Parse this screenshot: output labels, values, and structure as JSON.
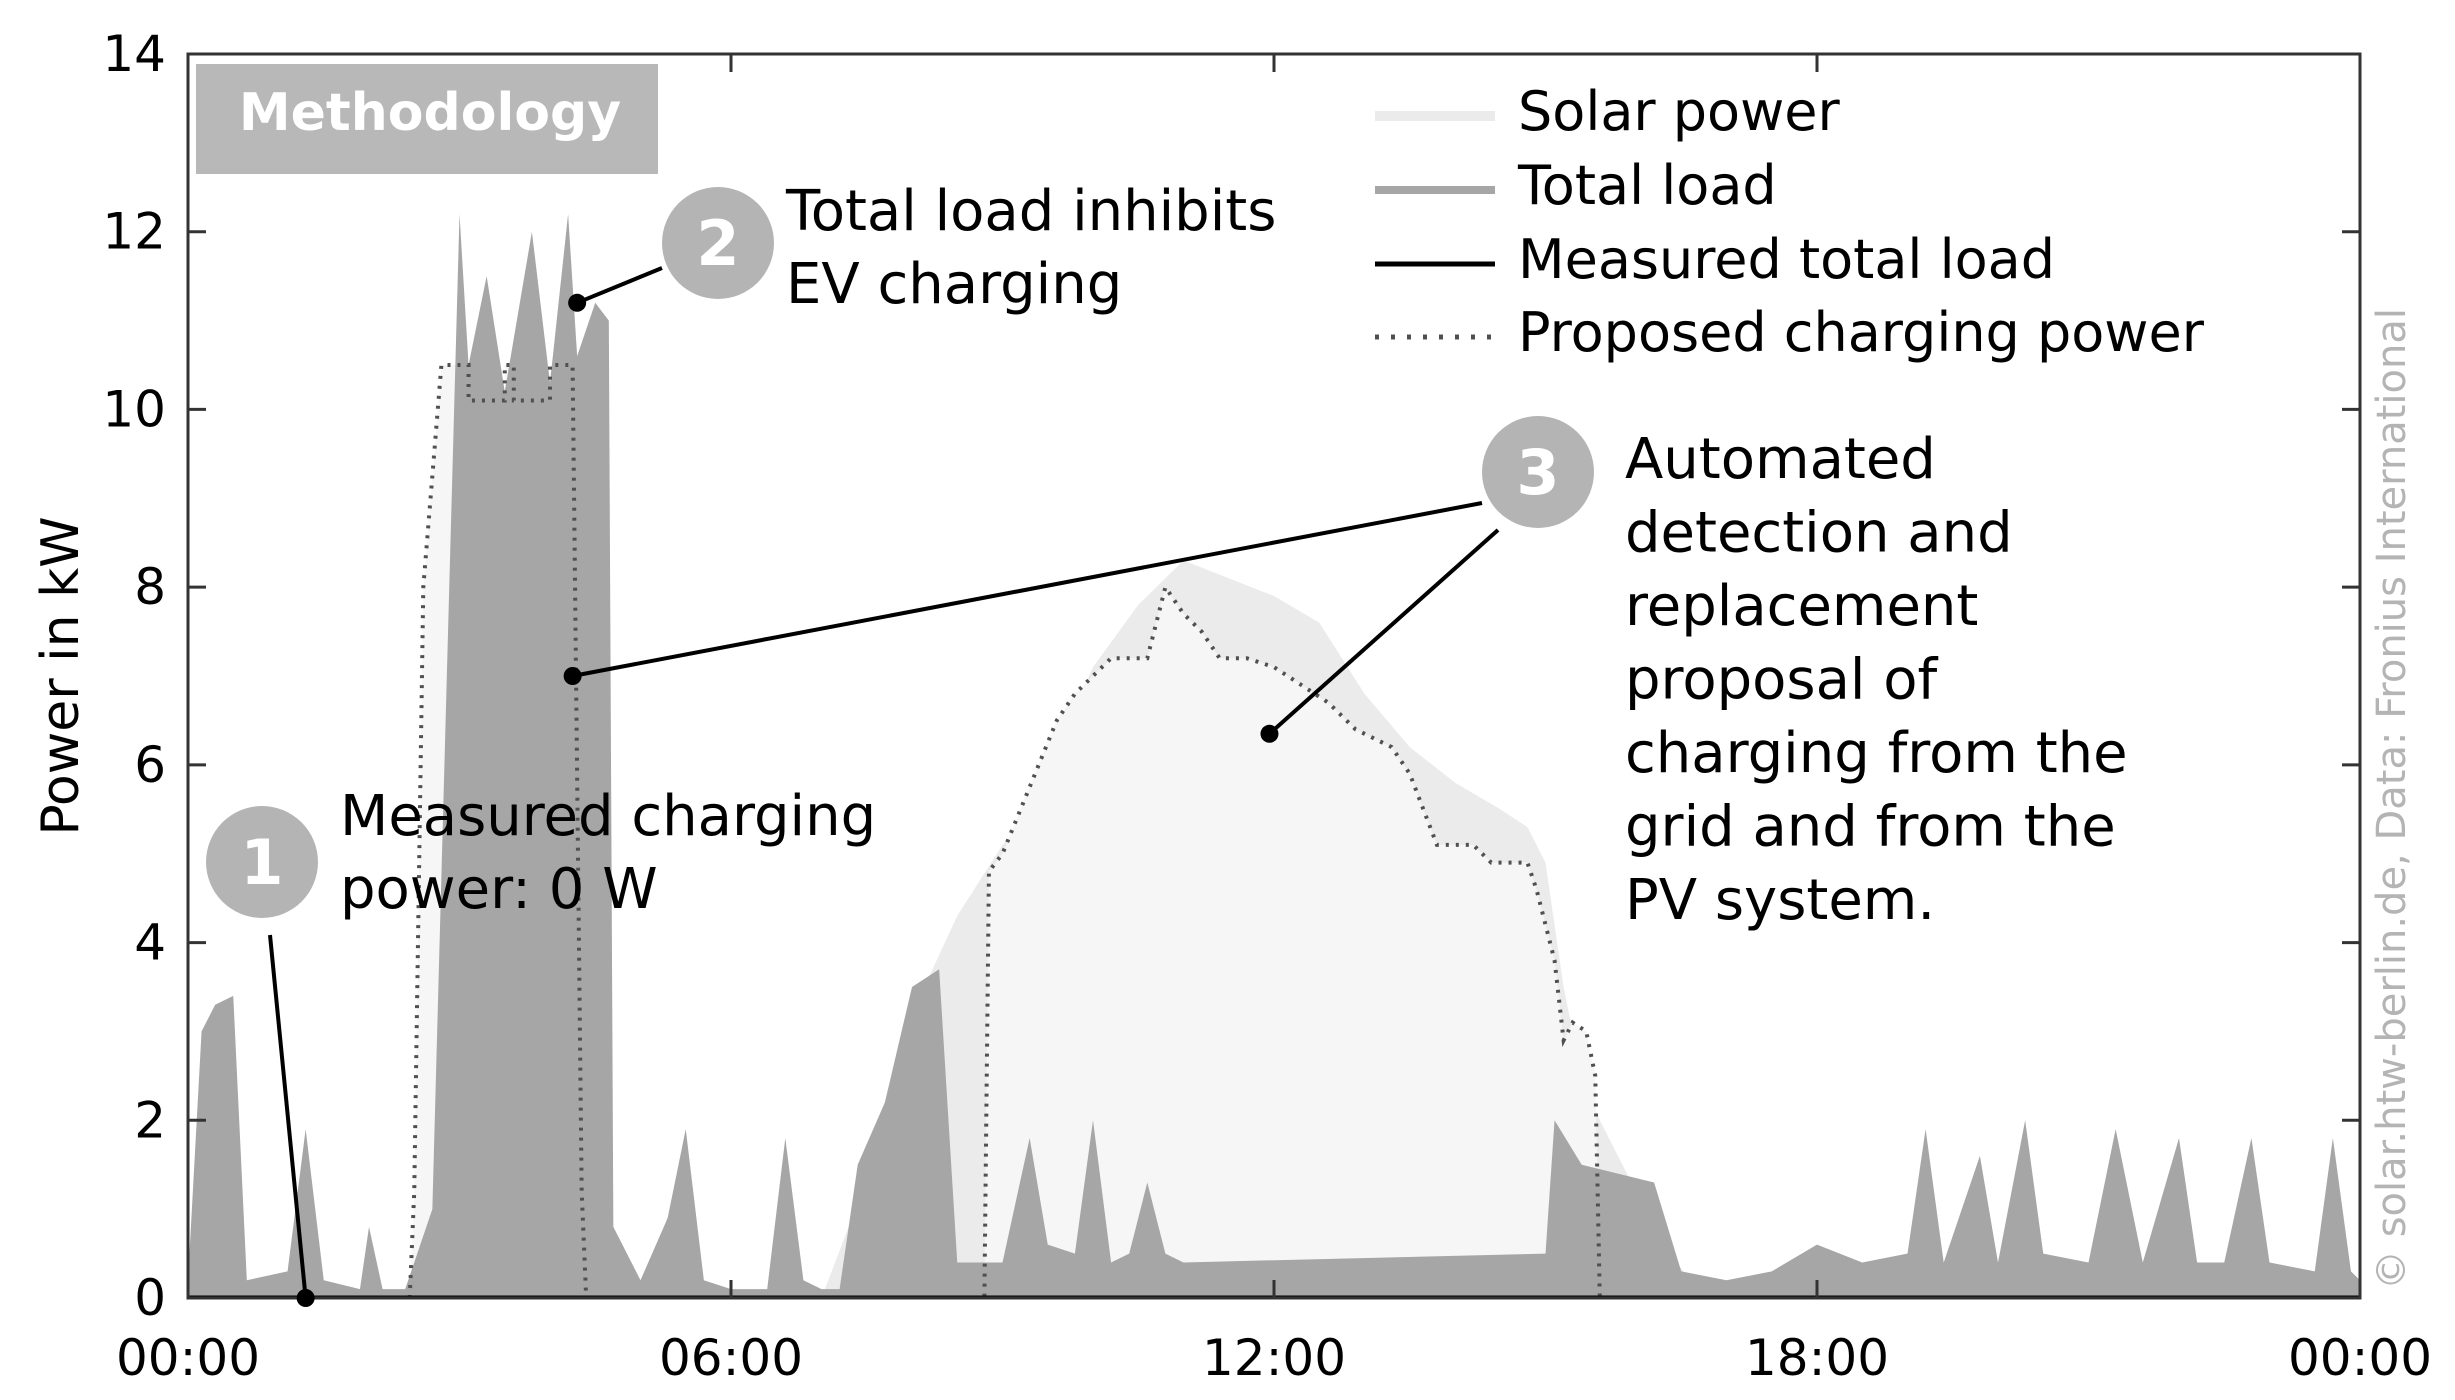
{
  "chart_data": {
    "type": "area",
    "title": "",
    "badge": "Methodology",
    "ylabel": "Power in kW",
    "xlabel": "",
    "xlim": [
      0,
      24
    ],
    "ylim": [
      0,
      14
    ],
    "x_ticks": [
      0,
      6,
      12,
      18,
      24
    ],
    "x_tick_labels": [
      "00:00",
      "06:00",
      "12:00",
      "18:00",
      "00:00"
    ],
    "y_ticks": [
      0,
      2,
      4,
      6,
      8,
      10,
      12,
      14
    ],
    "y_tick_labels": [
      "0",
      "2",
      "4",
      "6",
      "8",
      "10",
      "12",
      "14"
    ],
    "grid": false,
    "legend_position": "top-right",
    "legend": [
      {
        "name": "Solar power",
        "style": "fill-light"
      },
      {
        "name": "Total load",
        "style": "fill-gray"
      },
      {
        "name": "Measured total load",
        "style": "solid"
      },
      {
        "name": "Proposed charging power",
        "style": "dotted"
      }
    ],
    "colors": {
      "solar": "#ebebeb",
      "solar_inner": "#f6f6f6",
      "load": "#a6a6a6",
      "measured": "#000000",
      "proposed": "#505050",
      "marker": "#b4b4b4",
      "watermark": "#b4b4b4"
    },
    "series": [
      {
        "name": "Solar power",
        "points": [
          [
            7.0,
            0
          ],
          [
            7.3,
            0.8
          ],
          [
            7.7,
            2.2
          ],
          [
            8.0,
            3.2
          ],
          [
            8.5,
            4.3
          ],
          [
            9.0,
            5.1
          ],
          [
            9.3,
            5.4
          ],
          [
            9.6,
            6.2
          ],
          [
            10.0,
            7.1
          ],
          [
            10.5,
            7.8
          ],
          [
            11.0,
            8.3
          ],
          [
            11.5,
            8.1
          ],
          [
            12.0,
            7.9
          ],
          [
            12.5,
            7.6
          ],
          [
            13.0,
            6.8
          ],
          [
            13.5,
            6.2
          ],
          [
            14.0,
            5.8
          ],
          [
            14.5,
            5.5
          ],
          [
            14.8,
            5.3
          ],
          [
            15.0,
            4.9
          ],
          [
            15.2,
            3.5
          ],
          [
            15.4,
            2.5
          ],
          [
            15.6,
            2.0
          ],
          [
            16.0,
            1.2
          ],
          [
            16.3,
            0.6
          ],
          [
            16.6,
            0.2
          ],
          [
            17.0,
            0
          ]
        ]
      },
      {
        "name": "Total load",
        "points": [
          [
            0.0,
            0.2
          ],
          [
            0.15,
            3.0
          ],
          [
            0.3,
            3.3
          ],
          [
            0.5,
            3.4
          ],
          [
            0.65,
            0.2
          ],
          [
            1.1,
            0.3
          ],
          [
            1.3,
            1.9
          ],
          [
            1.5,
            0.2
          ],
          [
            1.9,
            0.1
          ],
          [
            2.0,
            0.8
          ],
          [
            2.15,
            0.1
          ],
          [
            2.4,
            0.1
          ],
          [
            2.7,
            1.0
          ],
          [
            2.9,
            8.5
          ],
          [
            3.0,
            12.2
          ],
          [
            3.1,
            10.5
          ],
          [
            3.3,
            11.5
          ],
          [
            3.5,
            10.2
          ],
          [
            3.8,
            12.0
          ],
          [
            4.0,
            10.3
          ],
          [
            4.2,
            12.2
          ],
          [
            4.3,
            10.6
          ],
          [
            4.5,
            11.2
          ],
          [
            4.65,
            11.0
          ],
          [
            4.7,
            0.8
          ],
          [
            5.0,
            0.2
          ],
          [
            5.3,
            0.9
          ],
          [
            5.5,
            1.9
          ],
          [
            5.7,
            0.2
          ],
          [
            6.0,
            0.1
          ],
          [
            6.4,
            0.1
          ],
          [
            6.6,
            1.8
          ],
          [
            6.8,
            0.2
          ],
          [
            7.0,
            0.1
          ],
          [
            7.2,
            0.1
          ],
          [
            7.4,
            1.5
          ],
          [
            7.7,
            2.2
          ],
          [
            8.0,
            3.5
          ],
          [
            8.3,
            3.7
          ],
          [
            8.5,
            0.4
          ],
          [
            9.0,
            0.4
          ],
          [
            9.3,
            1.8
          ],
          [
            9.5,
            0.6
          ],
          [
            9.8,
            0.5
          ],
          [
            10.0,
            2.0
          ],
          [
            10.2,
            0.4
          ],
          [
            10.4,
            0.5
          ],
          [
            10.6,
            1.3
          ],
          [
            10.8,
            0.5
          ],
          [
            11.0,
            0.4
          ],
          [
            15.0,
            0.5
          ],
          [
            15.1,
            2.0
          ],
          [
            15.4,
            1.5
          ],
          [
            15.8,
            1.4
          ],
          [
            16.2,
            1.3
          ],
          [
            16.5,
            0.3
          ],
          [
            17.0,
            0.2
          ],
          [
            17.5,
            0.3
          ],
          [
            18.0,
            0.6
          ],
          [
            18.5,
            0.4
          ],
          [
            19.0,
            0.5
          ],
          [
            19.2,
            1.9
          ],
          [
            19.4,
            0.4
          ],
          [
            19.8,
            1.6
          ],
          [
            20.0,
            0.4
          ],
          [
            20.3,
            2.0
          ],
          [
            20.5,
            0.5
          ],
          [
            21.0,
            0.4
          ],
          [
            21.3,
            1.9
          ],
          [
            21.6,
            0.4
          ],
          [
            22.0,
            1.8
          ],
          [
            22.2,
            0.4
          ],
          [
            22.5,
            0.4
          ],
          [
            22.8,
            1.8
          ],
          [
            23.0,
            0.4
          ],
          [
            23.5,
            0.3
          ],
          [
            23.7,
            1.8
          ],
          [
            23.9,
            0.3
          ],
          [
            24.0,
            0.2
          ]
        ]
      },
      {
        "name": "Measured total load",
        "points": [
          [
            0,
            0
          ],
          [
            24,
            0
          ]
        ]
      },
      {
        "name": "Proposed charging power",
        "points": [
          [
            2.45,
            0
          ],
          [
            2.5,
            1.2
          ],
          [
            2.6,
            8.0
          ],
          [
            2.8,
            10.5
          ],
          [
            3.1,
            10.5
          ],
          [
            3.1,
            10.1
          ],
          [
            3.5,
            10.1
          ],
          [
            3.5,
            10.5
          ],
          [
            3.6,
            10.5
          ],
          [
            3.6,
            10.1
          ],
          [
            4.0,
            10.1
          ],
          [
            4.0,
            10.5
          ],
          [
            4.25,
            10.5
          ],
          [
            4.35,
            1.2
          ],
          [
            4.4,
            0
          ],
          [
            8.8,
            0
          ],
          [
            8.85,
            4.8
          ],
          [
            9.0,
            5.0
          ],
          [
            9.2,
            5.5
          ],
          [
            9.4,
            6.0
          ],
          [
            9.6,
            6.5
          ],
          [
            9.8,
            6.8
          ],
          [
            10.0,
            7.0
          ],
          [
            10.2,
            7.2
          ],
          [
            10.6,
            7.2
          ],
          [
            10.8,
            8.0
          ],
          [
            11.0,
            7.7
          ],
          [
            11.2,
            7.5
          ],
          [
            11.4,
            7.2
          ],
          [
            11.7,
            7.2
          ],
          [
            12.0,
            7.1
          ],
          [
            12.3,
            6.9
          ],
          [
            12.6,
            6.7
          ],
          [
            12.9,
            6.4
          ],
          [
            13.3,
            6.2
          ],
          [
            13.5,
            5.9
          ],
          [
            13.8,
            5.1
          ],
          [
            14.2,
            5.1
          ],
          [
            14.4,
            4.9
          ],
          [
            14.8,
            4.9
          ],
          [
            14.9,
            4.6
          ],
          [
            15.0,
            4.2
          ],
          [
            15.1,
            3.8
          ],
          [
            15.2,
            2.9
          ],
          [
            15.3,
            3.1
          ],
          [
            15.45,
            3.0
          ],
          [
            15.55,
            2.5
          ],
          [
            15.6,
            0
          ],
          [
            24.0,
            0
          ]
        ]
      }
    ],
    "annotations": [
      {
        "id": "1",
        "text": [
          "Measured charging",
          "power: 0 W"
        ],
        "target": [
          1.3,
          0
        ]
      },
      {
        "id": "2",
        "text": [
          "Total load inhibits",
          "EV charging"
        ],
        "target": [
          4.3,
          11.2
        ]
      },
      {
        "id": "3",
        "text": [
          "Automated",
          "detection and",
          "replacement",
          "proposal of",
          "charging from the",
          "grid and from the",
          "PV system."
        ],
        "targets": [
          [
            4.25,
            7.0
          ],
          [
            11.95,
            6.35
          ]
        ]
      }
    ],
    "watermark": "© solar.htw-berlin.de, Data: Fronius International"
  }
}
